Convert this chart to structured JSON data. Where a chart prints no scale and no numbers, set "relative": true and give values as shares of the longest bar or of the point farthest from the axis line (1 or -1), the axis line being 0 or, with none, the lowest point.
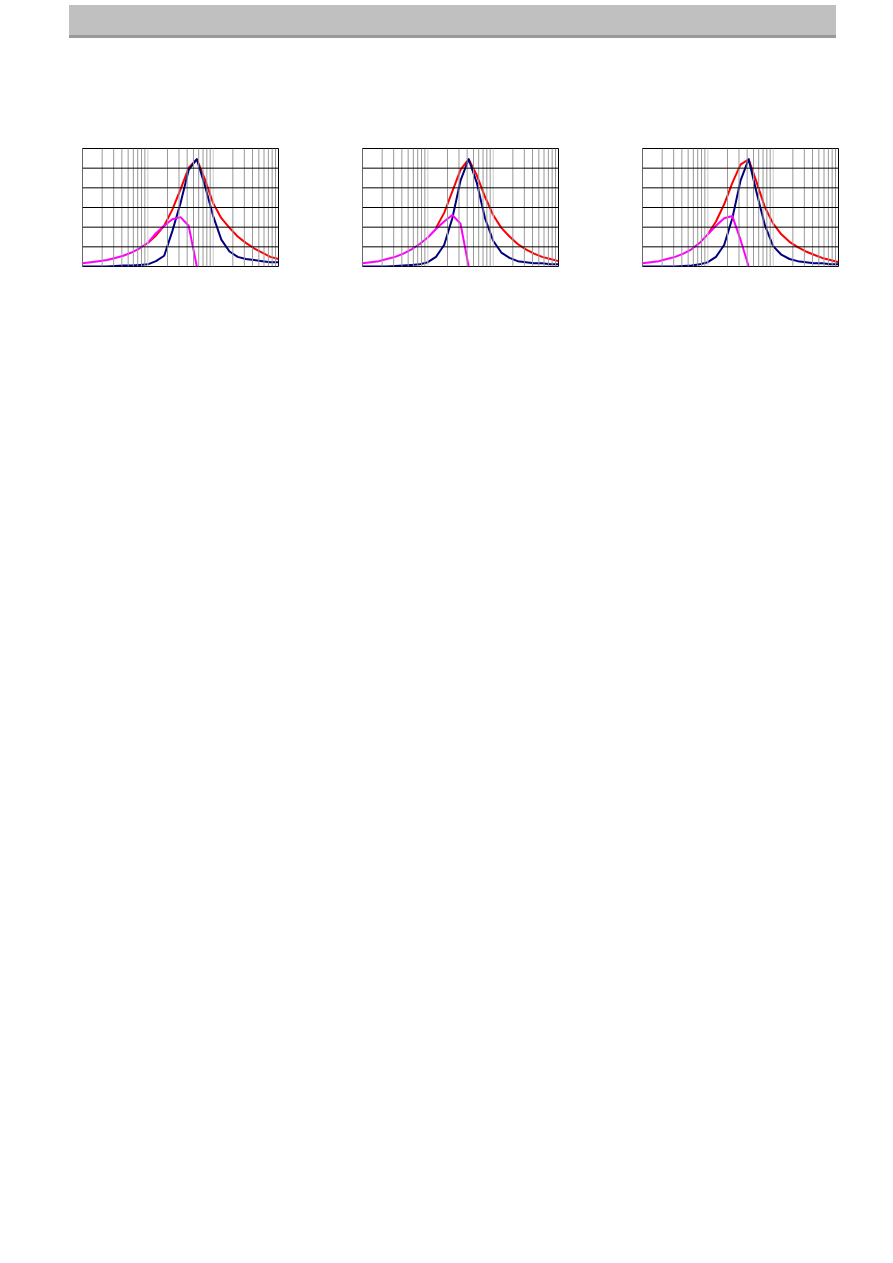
{
  "chart_data": [
    {
      "type": "line",
      "relative": true,
      "grid": true,
      "categories": [
        null,
        null,
        null,
        null,
        null,
        null,
        null,
        null,
        null,
        null,
        null,
        null,
        null,
        null,
        null,
        null,
        null,
        null,
        null,
        null,
        null,
        null,
        null,
        null,
        null
      ],
      "series": [
        {
          "color": "#ff0000",
          "values": [
            null,
            null,
            null,
            null,
            null,
            null,
            null,
            null,
            0.22,
            0.29,
            0.38,
            0.53,
            0.72,
            0.92,
            1.0,
            0.81,
            0.59,
            0.45,
            0.36,
            0.28,
            0.22,
            0.17,
            0.13,
            0.09,
            0.07
          ]
        },
        {
          "color": "#000080",
          "values": [
            0.0,
            0.0,
            0.0,
            0.0,
            0.005,
            0.01,
            0.01,
            0.015,
            0.02,
            0.05,
            0.1,
            0.33,
            0.59,
            0.9,
            1.0,
            0.75,
            0.47,
            0.25,
            0.14,
            0.09,
            0.07,
            0.06,
            0.05,
            0.04,
            0.04
          ]
        },
        {
          "color": "#ff00ff",
          "values": [
            0.03,
            0.04,
            0.05,
            0.06,
            0.08,
            0.1,
            0.13,
            0.17,
            0.22,
            0.31,
            0.38,
            0.44,
            0.46,
            0.38,
            0.0,
            null,
            null,
            null,
            null,
            null,
            null,
            null,
            null,
            null,
            null
          ]
        }
      ]
    },
    {
      "type": "line",
      "relative": true,
      "grid": true,
      "categories": [
        null,
        null,
        null,
        null,
        null,
        null,
        null,
        null,
        null,
        null,
        null,
        null,
        null,
        null,
        null,
        null,
        null,
        null,
        null,
        null,
        null,
        null,
        null,
        null,
        null
      ],
      "series": [
        {
          "color": "#ff0000",
          "values": [
            null,
            null,
            null,
            null,
            null,
            null,
            null,
            null,
            null,
            0.36,
            0.5,
            0.7,
            0.9,
            1.0,
            0.85,
            0.65,
            0.48,
            0.36,
            0.28,
            0.21,
            0.16,
            0.12,
            0.09,
            0.07,
            0.05
          ]
        },
        {
          "color": "#000080",
          "values": [
            0.0,
            0.0,
            0.0,
            0.0,
            0.005,
            0.01,
            0.015,
            0.02,
            0.04,
            0.09,
            0.2,
            0.45,
            0.8,
            1.0,
            0.78,
            0.45,
            0.24,
            0.13,
            0.08,
            0.05,
            0.04,
            0.03,
            0.03,
            0.02,
            0.02
          ]
        },
        {
          "color": "#ff00ff",
          "values": [
            0.03,
            0.04,
            0.05,
            0.07,
            0.09,
            0.12,
            0.16,
            0.21,
            0.27,
            0.35,
            0.42,
            0.48,
            0.4,
            0.0,
            null,
            null,
            null,
            null,
            null,
            null,
            null,
            null,
            null,
            null,
            null
          ]
        }
      ]
    },
    {
      "type": "line",
      "relative": true,
      "grid": true,
      "categories": [
        null,
        null,
        null,
        null,
        null,
        null,
        null,
        null,
        null,
        null,
        null,
        null,
        null,
        null,
        null,
        null,
        null,
        null,
        null,
        null,
        null,
        null,
        null,
        null,
        null
      ],
      "series": [
        {
          "color": "#ff0000",
          "values": [
            null,
            null,
            null,
            null,
            null,
            null,
            null,
            null,
            0.3,
            0.42,
            0.58,
            0.78,
            0.95,
            1.0,
            0.78,
            0.55,
            0.4,
            0.3,
            0.23,
            0.18,
            0.14,
            0.11,
            0.08,
            0.06,
            0.04
          ]
        },
        {
          "color": "#000080",
          "values": [
            0.0,
            0.0,
            0.0,
            0.0,
            0.0,
            0.005,
            0.01,
            0.02,
            0.04,
            0.09,
            0.2,
            0.45,
            0.8,
            1.0,
            0.68,
            0.38,
            0.19,
            0.11,
            0.07,
            0.05,
            0.04,
            0.03,
            0.03,
            0.02,
            0.02
          ]
        },
        {
          "color": "#ff00ff",
          "values": [
            0.03,
            0.04,
            0.05,
            0.07,
            0.09,
            0.12,
            0.16,
            0.22,
            0.3,
            0.38,
            0.45,
            0.47,
            0.25,
            0.0,
            null,
            null,
            null,
            null,
            null,
            null,
            null,
            null,
            null,
            null,
            null
          ]
        }
      ]
    }
  ]
}
